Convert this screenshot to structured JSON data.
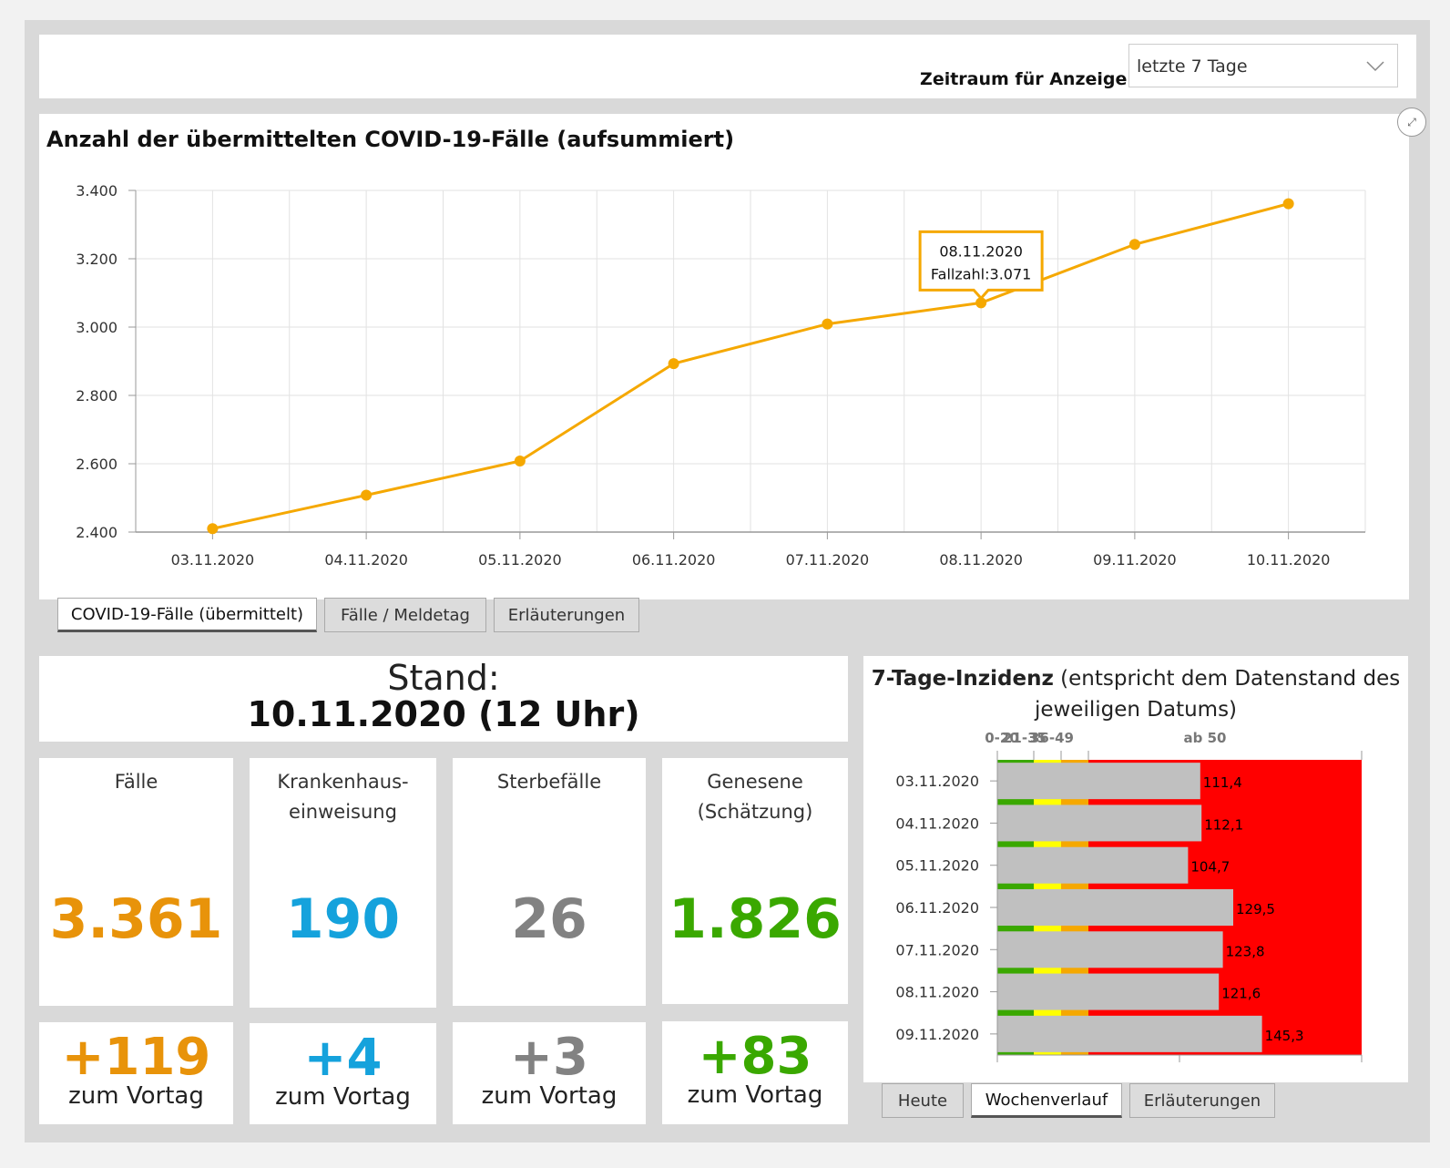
{
  "filter": {
    "label": "Zeitraum für Anzeige:",
    "selected": "letzte 7 Tage"
  },
  "chart": {
    "title": "Anzahl der übermittelten COVID-19-Fälle (aufsummiert)",
    "tooltip": {
      "date": "08.11.2020",
      "text": "Fallzahl:3.071"
    },
    "color": "#f5a800"
  },
  "chart_data": [
    {
      "type": "line",
      "title": "Anzahl der übermittelten COVID-19-Fälle (aufsummiert)",
      "x": [
        "03.11.2020",
        "04.11.2020",
        "05.11.2020",
        "06.11.2020",
        "07.11.2020",
        "08.11.2020",
        "09.11.2020",
        "10.11.2020"
      ],
      "series": [
        {
          "values": [
            2410,
            2508,
            2608,
            2893,
            3009,
            3071,
            3242,
            3361
          ]
        }
      ],
      "ylim": [
        2400,
        3400
      ],
      "yticks": [
        "2.400",
        "2.600",
        "2.800",
        "3.000",
        "3.200",
        "3.400"
      ],
      "grid": true
    },
    {
      "type": "bar",
      "title": "7-Tage-Inzidenz",
      "categories": [
        "03.11.2020",
        "04.11.2020",
        "05.11.2020",
        "06.11.2020",
        "07.11.2020",
        "08.11.2020",
        "09.11.2020"
      ],
      "values": [
        111.4,
        112.1,
        104.7,
        129.5,
        123.8,
        121.6,
        145.3
      ],
      "value_labels": [
        "111,4",
        "112,1",
        "104,7",
        "129,5",
        "123,8",
        "121,6",
        "145,3"
      ],
      "bands": [
        {
          "label": "0-20",
          "from": 0,
          "to": 20,
          "color": "#3aa800"
        },
        {
          "label": "21-35",
          "from": 20,
          "to": 35,
          "color": "#ffff00"
        },
        {
          "label": "36-49",
          "from": 35,
          "to": 50,
          "color": "#f5a800"
        },
        {
          "label": "ab 50",
          "from": 50,
          "to": 200,
          "color": "#ff0000"
        }
      ],
      "xlim": [
        0,
        200
      ]
    }
  ],
  "chart_tabs": [
    "COVID-19-Fälle (übermittelt)",
    "Fälle / Meldetag",
    "Erläuterungen"
  ],
  "stand": {
    "line1": "Stand:",
    "line2": "10.11.2020 (12 Uhr)"
  },
  "cards": [
    {
      "title": "Fälle",
      "value": "3.361",
      "delta": "+119",
      "delta_label": "zum Vortag",
      "color": "#e8930a"
    },
    {
      "title": "Krankenhaus-\neinweisung",
      "value": "190",
      "delta": "+4",
      "delta_label": "zum Vortag",
      "color": "#15a2dc"
    },
    {
      "title": "Sterbefälle",
      "value": "26",
      "delta": "+3",
      "delta_label": "zum Vortag",
      "color": "#828282"
    },
    {
      "title": "Genesene\n(Schätzung)",
      "value": "1.826",
      "delta": "+83",
      "delta_label": "zum Vortag",
      "color": "#3aa800"
    }
  ],
  "inzidenz": {
    "title_bold": "7-Tage-Inzidenz",
    "title_rest": " (entspricht dem Datenstand des jeweiligen Datums)"
  },
  "inz_tabs": [
    "Heute",
    "Wochenverlauf",
    "Erläuterungen"
  ]
}
